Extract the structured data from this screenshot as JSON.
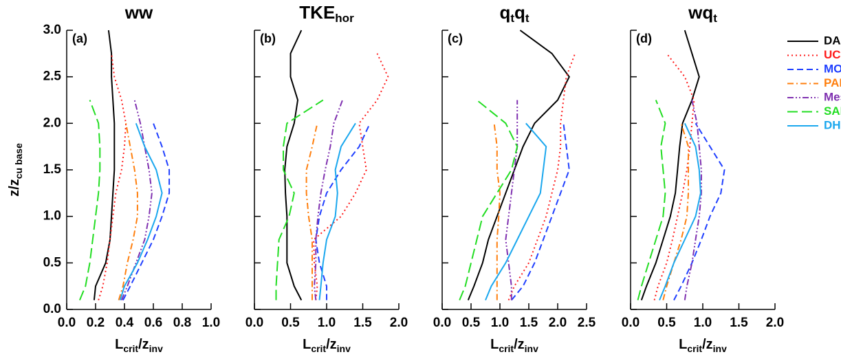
{
  "chart_data": [
    {
      "type": "line",
      "title": [
        "ww"
      ],
      "panel_label": "(a)",
      "x_label": [
        "L",
        "crit",
        "/z",
        "inv"
      ],
      "y_label": [
        "z/z",
        "cu base"
      ],
      "xlim": [
        0,
        1
      ],
      "xticks": [
        {
          "value": 0,
          "label": "0.0"
        },
        0.2,
        0.4,
        0.6,
        0.8,
        {
          "value": 1,
          "label": "1.0"
        }
      ],
      "ylim": [
        0,
        3
      ],
      "yticks": [
        {
          "value": 0,
          "label": "0.0"
        },
        0.5,
        {
          "value": 1,
          "label": "1.0"
        },
        1.5,
        {
          "value": 2,
          "label": "2.0"
        },
        2.5,
        {
          "value": 3,
          "label": "3.0"
        }
      ],
      "ytick_labels": true,
      "y": [
        0.1,
        0.25,
        0.5,
        0.75,
        1.0,
        1.25,
        1.5,
        1.75,
        2.0,
        2.25,
        2.5,
        2.75,
        3.0
      ],
      "series": [
        {
          "color": "#000000",
          "style": "solid",
          "values": [
            0.19,
            0.2,
            0.27,
            0.3,
            0.31,
            0.32,
            0.33,
            0.33,
            0.33,
            0.32,
            0.31,
            0.31,
            0.29
          ]
        },
        {
          "color": "#ff1a1a",
          "style": "dotted",
          "values": [
            0.22,
            0.25,
            0.28,
            0.3,
            0.32,
            0.34,
            0.38,
            0.4,
            0.41,
            0.38,
            0.33,
            0.31,
            null
          ]
        },
        {
          "color": "#1f3fff",
          "style": "dashed",
          "values": [
            0.39,
            0.44,
            0.52,
            0.6,
            0.66,
            0.71,
            0.71,
            0.66,
            0.6,
            null,
            null,
            null,
            null
          ]
        },
        {
          "color": "#ff7f0e",
          "style": "dashdot",
          "values": [
            0.36,
            0.39,
            0.42,
            0.46,
            0.49,
            0.49,
            0.47,
            0.44,
            0.41,
            null,
            null,
            null,
            null
          ]
        },
        {
          "color": "#7f30b0",
          "style": "dashdotdot",
          "values": [
            0.38,
            0.42,
            0.48,
            0.54,
            0.57,
            0.59,
            0.57,
            0.54,
            0.51,
            0.47,
            null,
            null,
            null
          ]
        },
        {
          "color": "#22dd22",
          "style": "longdash",
          "values": [
            0.09,
            0.13,
            0.16,
            0.18,
            0.2,
            0.22,
            0.23,
            0.23,
            0.22,
            0.16,
            null,
            null,
            null
          ]
        },
        {
          "color": "#1aa7ee",
          "style": "solid",
          "values": [
            0.37,
            0.4,
            0.49,
            0.56,
            0.62,
            0.66,
            0.62,
            0.54,
            0.48,
            null,
            null,
            null,
            null
          ]
        }
      ]
    },
    {
      "type": "line",
      "title": [
        "TKE",
        "hor"
      ],
      "panel_label": "(b)",
      "x_label": [
        "L",
        "crit",
        "/z",
        "inv"
      ],
      "xlim": [
        0,
        2
      ],
      "xticks": [
        {
          "value": 0,
          "label": "0.0"
        },
        0.5,
        {
          "value": 1,
          "label": "1.0"
        },
        1.5,
        {
          "value": 2,
          "label": "2.0"
        }
      ],
      "ylim": [
        0,
        3
      ],
      "yticks": [
        0,
        0.5,
        1,
        1.5,
        2,
        2.5,
        3
      ],
      "ytick_labels": false,
      "y": [
        0.1,
        0.25,
        0.5,
        0.75,
        1.0,
        1.25,
        1.5,
        1.75,
        2.0,
        2.25,
        2.5,
        2.75,
        3.0
      ],
      "series": [
        {
          "color": "#000000",
          "style": "solid",
          "values": [
            0.65,
            0.55,
            0.45,
            0.45,
            0.45,
            0.43,
            0.42,
            0.45,
            0.55,
            0.6,
            0.5,
            0.5,
            0.65
          ]
        },
        {
          "color": "#ff1a1a",
          "style": "dotted",
          "values": [
            0.85,
            0.87,
            0.83,
            0.82,
            1.2,
            1.4,
            1.55,
            1.5,
            1.45,
            1.7,
            1.85,
            1.7,
            null
          ]
        },
        {
          "color": "#1f3fff",
          "style": "dashed",
          "values": [
            1.0,
            1.0,
            0.9,
            0.85,
            0.9,
            1.0,
            1.2,
            1.45,
            1.6,
            null,
            null,
            null,
            null
          ]
        },
        {
          "color": "#ff7f0e",
          "style": "dashdot",
          "values": [
            0.8,
            0.8,
            0.8,
            0.8,
            0.75,
            0.72,
            0.72,
            0.8,
            0.87,
            null,
            null,
            null,
            null
          ]
        },
        {
          "color": "#7f30b0",
          "style": "dashdotdot",
          "values": [
            0.85,
            0.83,
            0.85,
            0.85,
            0.88,
            0.92,
            0.98,
            1.05,
            1.1,
            1.22,
            null,
            null,
            null
          ]
        },
        {
          "color": "#22dd22",
          "style": "longdash",
          "values": [
            0.3,
            0.3,
            0.32,
            0.34,
            0.48,
            0.55,
            0.4,
            0.4,
            0.45,
            0.95,
            null,
            null,
            null
          ]
        },
        {
          "color": "#1aa7ee",
          "style": "solid",
          "values": [
            0.9,
            0.92,
            0.95,
            1.0,
            1.12,
            1.15,
            1.12,
            1.2,
            1.4,
            null,
            null,
            null,
            null
          ]
        }
      ]
    },
    {
      "type": "line",
      "title": [
        "q",
        "t",
        "q",
        "t"
      ],
      "panel_label": "(c)",
      "x_label": [
        "L",
        "crit",
        "/z",
        "inv"
      ],
      "xlim": [
        0,
        2.5
      ],
      "xticks": [
        {
          "value": 0,
          "label": "0.0"
        },
        0.5,
        {
          "value": 1,
          "label": "1.0"
        },
        1.5,
        {
          "value": 2,
          "label": "2.0"
        },
        2.5
      ],
      "ylim": [
        0,
        3
      ],
      "yticks": [
        0,
        0.5,
        1,
        1.5,
        2,
        2.5,
        3
      ],
      "ytick_labels": false,
      "y": [
        0.1,
        0.25,
        0.5,
        0.75,
        1.0,
        1.25,
        1.5,
        1.75,
        2.0,
        2.25,
        2.5,
        2.75,
        3.0
      ],
      "series": [
        {
          "color": "#000000",
          "style": "solid",
          "values": [
            0.45,
            0.55,
            0.7,
            0.8,
            0.95,
            1.1,
            1.25,
            1.4,
            1.6,
            2.0,
            2.2,
            1.9,
            1.35
          ]
        },
        {
          "color": "#ff1a1a",
          "style": "dotted",
          "values": [
            1.15,
            1.25,
            1.5,
            1.65,
            1.8,
            1.9,
            2.0,
            2.05,
            2.05,
            2.1,
            2.15,
            2.3,
            null
          ]
        },
        {
          "color": "#1f3fff",
          "style": "dashed",
          "values": [
            1.2,
            1.4,
            1.6,
            1.75,
            1.9,
            2.05,
            2.2,
            2.15,
            2.1,
            null,
            null,
            null,
            null
          ]
        },
        {
          "color": "#ff7f0e",
          "style": "dashdot",
          "values": [
            0.95,
            0.95,
            0.95,
            0.95,
            0.98,
            1.0,
            0.95,
            0.95,
            0.9,
            null,
            null,
            null,
            null
          ]
        },
        {
          "color": "#7f30b0",
          "style": "dashdotdot",
          "values": [
            1.2,
            1.2,
            1.15,
            1.1,
            1.15,
            1.2,
            1.25,
            1.3,
            1.3,
            1.3,
            null,
            null,
            null
          ]
        },
        {
          "color": "#22dd22",
          "style": "longdash",
          "values": [
            0.3,
            0.4,
            0.5,
            0.6,
            0.7,
            0.95,
            1.2,
            1.3,
            1.1,
            0.6,
            null,
            null,
            null
          ]
        },
        {
          "color": "#1aa7ee",
          "style": "solid",
          "values": [
            0.75,
            0.85,
            1.1,
            1.3,
            1.5,
            1.7,
            1.75,
            1.8,
            1.45,
            null,
            null,
            null,
            null
          ]
        }
      ]
    },
    {
      "type": "line",
      "title": [
        "wq",
        "t"
      ],
      "panel_label": "(d)",
      "x_label": [
        "L",
        "crit",
        "/z",
        "inv"
      ],
      "xlim": [
        0,
        2
      ],
      "xticks": [
        {
          "value": 0,
          "label": "0.0"
        },
        0.5,
        {
          "value": 1,
          "label": "1.0"
        },
        1.5,
        {
          "value": 2,
          "label": "2.0"
        }
      ],
      "ylim": [
        0,
        3
      ],
      "yticks": [
        0,
        0.5,
        1,
        1.5,
        2,
        2.5,
        3
      ],
      "ytick_labels": false,
      "legend": "right",
      "y": [
        0.1,
        0.25,
        0.5,
        0.75,
        1.0,
        1.25,
        1.5,
        1.75,
        2.0,
        2.25,
        2.5,
        2.75,
        3.0
      ],
      "series": [
        {
          "name": "DALES",
          "color": "#000000",
          "style": "solid",
          "values": [
            0.15,
            0.22,
            0.35,
            0.45,
            0.55,
            0.62,
            0.65,
            0.68,
            0.72,
            0.85,
            0.95,
            0.85,
            0.75
          ]
        },
        {
          "name": "UCLA",
          "color": "#ff1a1a",
          "style": "dotted",
          "values": [
            0.33,
            0.38,
            0.5,
            0.58,
            0.65,
            0.72,
            0.78,
            0.82,
            0.85,
            0.88,
            0.75,
            0.5,
            null
          ]
        },
        {
          "name": "MONC",
          "color": "#1f3fff",
          "style": "dashed",
          "values": [
            0.6,
            0.7,
            0.85,
            0.98,
            1.1,
            1.25,
            1.3,
            1.1,
            0.9,
            null,
            null,
            null,
            null
          ]
        },
        {
          "name": "PALM",
          "color": "#ff7f0e",
          "style": "dashdot",
          "values": [
            0.45,
            0.5,
            0.6,
            0.7,
            0.78,
            0.8,
            0.8,
            0.8,
            0.7,
            null,
            null,
            null,
            null
          ]
        },
        {
          "name": "Meso-NH",
          "color": "#7f30b0",
          "style": "dashdotdot",
          "values": [
            0.75,
            0.78,
            0.85,
            0.9,
            0.95,
            0.98,
            0.98,
            0.95,
            0.92,
            0.85,
            null,
            null,
            null
          ]
        },
        {
          "name": "SAM",
          "color": "#22dd22",
          "style": "longdash",
          "values": [
            0.1,
            0.15,
            0.25,
            0.35,
            0.45,
            0.48,
            0.45,
            0.42,
            0.48,
            0.35,
            null,
            null,
            null
          ]
        },
        {
          "name": "DHARMA",
          "color": "#1aa7ee",
          "style": "solid",
          "values": [
            0.4,
            0.48,
            0.6,
            0.75,
            0.9,
            0.97,
            0.95,
            0.9,
            0.75,
            null,
            null,
            null,
            null
          ]
        }
      ]
    }
  ]
}
